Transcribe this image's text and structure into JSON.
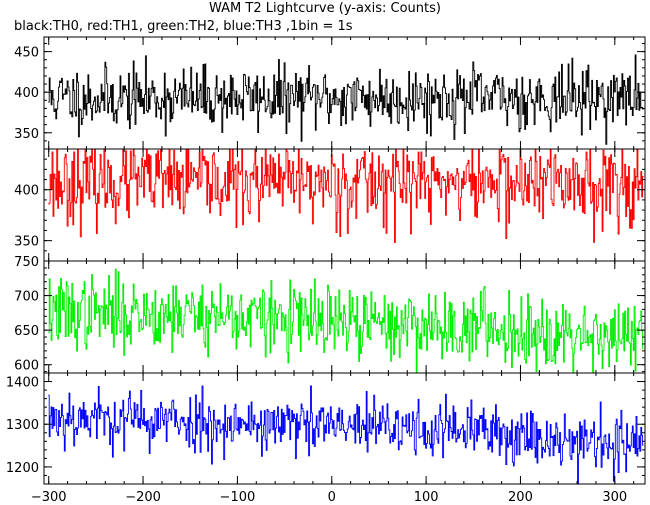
{
  "chart_data": {
    "type": "line",
    "title": "WAM T2 Lightcurve (y-axis: Counts)",
    "subtitle": "black:TH0, red:TH1, green:TH2, blue:TH3 ,1bin = 1s",
    "xlim": [
      -305,
      332
    ],
    "x_ticks": [
      -300,
      -200,
      -100,
      0,
      100,
      200,
      300
    ],
    "x_start": -300,
    "x_end": 330,
    "x_step": 1,
    "grid": false,
    "panels": [
      {
        "id": "TH0",
        "color": "#000000",
        "ylim": [
          330,
          468
        ],
        "y_ticks": [
          350,
          400,
          450
        ],
        "trend": [
          [
            -300,
            393
          ],
          [
            330,
            393
          ]
        ],
        "noise": 19,
        "seed": 11
      },
      {
        "id": "TH1",
        "color": "#ff0000",
        "ylim": [
          330,
          440
        ],
        "y_ticks": [
          350,
          400
        ],
        "trend": [
          [
            -300,
            408
          ],
          [
            330,
            407
          ]
        ],
        "noise": 20,
        "seed": 23
      },
      {
        "id": "TH2",
        "color": "#00ee00",
        "ylim": [
          588,
          750
        ],
        "y_ticks": [
          600,
          650,
          700,
          750
        ],
        "trend": [
          [
            -300,
            675
          ],
          [
            -150,
            675
          ],
          [
            0,
            660
          ],
          [
            150,
            655
          ],
          [
            330,
            640
          ]
        ],
        "noise": 26,
        "seed": 37
      },
      {
        "id": "TH3",
        "color": "#0000ff",
        "ylim": [
          1160,
          1420
        ],
        "y_ticks": [
          1200,
          1300,
          1400
        ],
        "trend": [
          [
            -300,
            1320
          ],
          [
            -150,
            1305
          ],
          [
            0,
            1295
          ],
          [
            150,
            1285
          ],
          [
            330,
            1250
          ]
        ],
        "noise": 34,
        "seed": 53
      }
    ]
  }
}
